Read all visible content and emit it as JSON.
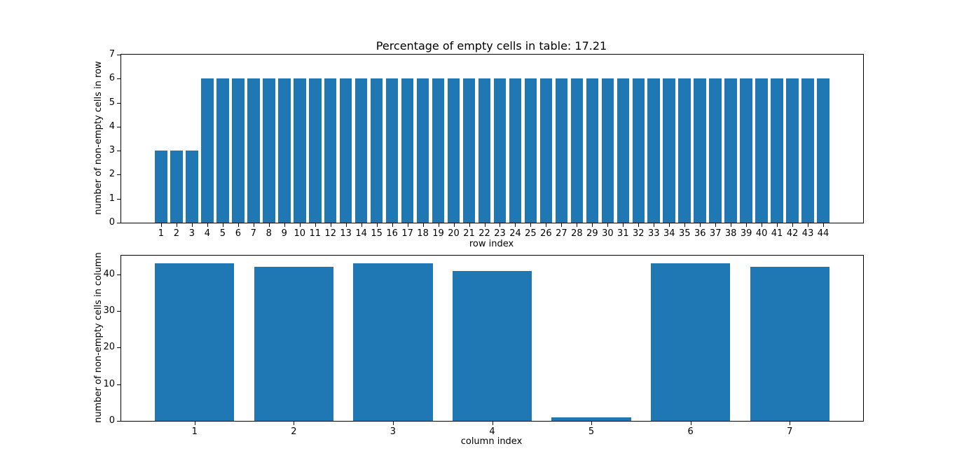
{
  "figure": {
    "background_color": "#ffffff",
    "text_color": "#000000"
  },
  "chart_data": [
    {
      "type": "bar",
      "title": "Percentage of empty cells in table: 17.21",
      "xlabel": "row index",
      "ylabel": "number of non-empty cells in row",
      "categories": [
        "1",
        "2",
        "3",
        "4",
        "5",
        "6",
        "7",
        "8",
        "9",
        "10",
        "11",
        "12",
        "13",
        "14",
        "15",
        "16",
        "17",
        "18",
        "19",
        "20",
        "21",
        "22",
        "23",
        "24",
        "25",
        "26",
        "27",
        "28",
        "29",
        "30",
        "31",
        "32",
        "33",
        "34",
        "35",
        "36",
        "37",
        "38",
        "39",
        "40",
        "41",
        "42",
        "43",
        "44"
      ],
      "values": [
        3,
        3,
        3,
        6,
        6,
        6,
        6,
        6,
        6,
        6,
        6,
        6,
        6,
        6,
        6,
        6,
        6,
        6,
        6,
        6,
        6,
        6,
        6,
        6,
        6,
        6,
        6,
        6,
        6,
        6,
        6,
        6,
        6,
        6,
        6,
        6,
        6,
        6,
        6,
        6,
        6,
        6,
        6,
        6
      ],
      "ylim": [
        0,
        7
      ],
      "yticks": [
        0,
        1,
        2,
        3,
        4,
        5,
        6,
        7
      ],
      "xlim": [
        -1.59,
        46.59
      ],
      "bar_width": 0.8,
      "bar_color": "#1f77b4",
      "grid": false
    },
    {
      "type": "bar",
      "title": "",
      "xlabel": "column index",
      "ylabel": "number of non-empty cells in column",
      "categories": [
        "1",
        "2",
        "3",
        "4",
        "5",
        "6",
        "7"
      ],
      "values": [
        43,
        42,
        43,
        41,
        1,
        43,
        42
      ],
      "ylim": [
        0,
        45.15
      ],
      "yticks": [
        0,
        10,
        20,
        30,
        40
      ],
      "xlim": [
        0.26,
        7.74
      ],
      "bar_width": 0.8,
      "bar_color": "#1f77b4",
      "grid": false
    }
  ]
}
